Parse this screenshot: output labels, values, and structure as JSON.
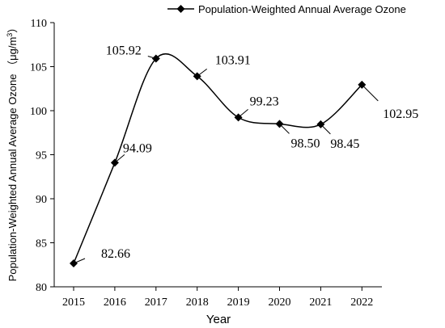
{
  "chart_data": {
    "type": "line",
    "x": [
      "2015",
      "2016",
      "2017",
      "2018",
      "2019",
      "2020",
      "2021",
      "2022"
    ],
    "series": [
      {
        "name": "Population-Weighted Annual Average Ozone",
        "values": [
          82.66,
          94.09,
          105.92,
          103.91,
          99.23,
          98.5,
          98.45,
          102.95
        ]
      }
    ],
    "data_labels": [
      "82.66",
      "94.09",
      "105.92",
      "103.91",
      "99.23",
      "98.50",
      "98.45",
      "102.95"
    ],
    "xlabel": "Year",
    "ylabel": "Population-Weighted Annual Average Ozone",
    "ylabel_unit": "μg/m",
    "ylabel_unit_sup": "3",
    "ylim": [
      80,
      110
    ],
    "yticks": [
      "80",
      "85",
      "90",
      "95",
      "100",
      "105",
      "110"
    ],
    "grid": false,
    "legend_position": "top",
    "marker": "diamond",
    "line_color": "#000000"
  }
}
